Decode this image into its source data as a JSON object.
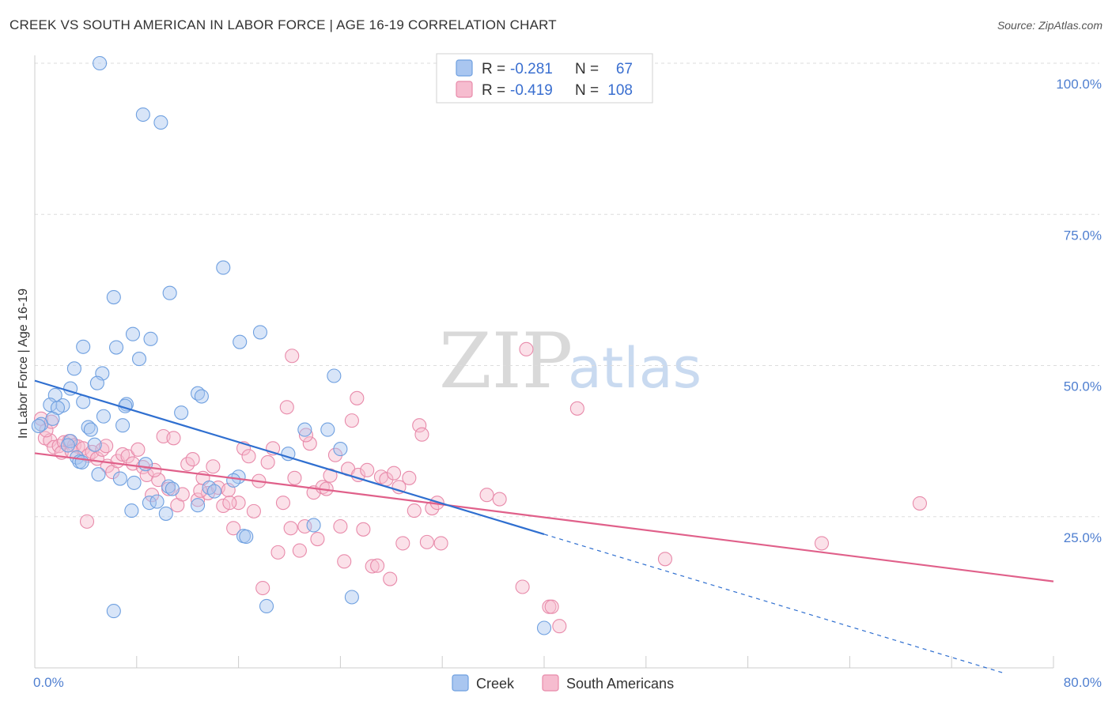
{
  "title": "CREEK VS SOUTH AMERICAN IN LABOR FORCE | AGE 16-19 CORRELATION CHART",
  "source": "Source: ZipAtlas.com",
  "watermark": {
    "zip": "ZIP",
    "atlas": "atlas"
  },
  "legend": {
    "creek": {
      "r_label": "R =",
      "r_value": "-0.281",
      "n_label": "N =",
      "n_value": "67"
    },
    "south": {
      "r_label": "R =",
      "r_value": "-0.419",
      "n_label": "N =",
      "n_value": "108"
    }
  },
  "bottom_legend": {
    "creek": "Creek",
    "south": "South Americans"
  },
  "colors": {
    "creek": "#6fa0e0",
    "creek_fill": "#a9c6f0",
    "creek_line": "#2f6fd0",
    "south": "#e88aaa",
    "south_fill": "#f6bccf",
    "south_line": "#e0608a"
  },
  "chart_data": {
    "type": "scatter",
    "title": "CREEK VS SOUTH AMERICAN IN LABOR FORCE | AGE 16-19 CORRELATION CHART",
    "xlabel": "",
    "ylabel": "In Labor Force | Age 16-19",
    "xlim": [
      0,
      80
    ],
    "ylim": [
      0,
      100
    ],
    "x_tick_labels": [
      "0.0%",
      "80.0%"
    ],
    "y_tick_labels": [
      "25.0%",
      "50.0%",
      "75.0%",
      "100.0%"
    ],
    "y_ticks": [
      25,
      50,
      75,
      100
    ],
    "series": [
      {
        "name": "Creek",
        "r": -0.281,
        "n": 67,
        "trend": {
          "x0": 0,
          "y0": 47.5,
          "x1": 40,
          "y1": 22.1,
          "dash_to_x": 76,
          "dash_to_y": -0.8
        },
        "points": [
          [
            5.1,
            100
          ],
          [
            8.5,
            91.5
          ],
          [
            9.9,
            90.2
          ],
          [
            14.8,
            66.2
          ],
          [
            10.6,
            62
          ],
          [
            6.2,
            61.3
          ],
          [
            17.7,
            55.5
          ],
          [
            7.7,
            55.2
          ],
          [
            9.1,
            54.4
          ],
          [
            16.1,
            53.9
          ],
          [
            3.8,
            53.1
          ],
          [
            6.4,
            53
          ],
          [
            8.2,
            51.1
          ],
          [
            3.1,
            49.5
          ],
          [
            5.3,
            48.7
          ],
          [
            23.5,
            48.3
          ],
          [
            4.9,
            47.1
          ],
          [
            2.8,
            46.2
          ],
          [
            12.8,
            45.4
          ],
          [
            1.6,
            45.1
          ],
          [
            13.1,
            44.9
          ],
          [
            3.8,
            44
          ],
          [
            7.2,
            43.6
          ],
          [
            1.2,
            43.5
          ],
          [
            2.2,
            43.4
          ],
          [
            7.1,
            43.3
          ],
          [
            1.8,
            43
          ],
          [
            11.5,
            42.2
          ],
          [
            1.4,
            41.2
          ],
          [
            5.4,
            41.6
          ],
          [
            0.5,
            40.3
          ],
          [
            0.3,
            40
          ],
          [
            6.9,
            40.1
          ],
          [
            4.2,
            39.8
          ],
          [
            4.4,
            39.4
          ],
          [
            21.2,
            39.4
          ],
          [
            23.0,
            39.4
          ],
          [
            2.8,
            37.5
          ],
          [
            4.7,
            36.9
          ],
          [
            2.6,
            36.8
          ],
          [
            24.0,
            36.2
          ],
          [
            19.9,
            35.4
          ],
          [
            3.3,
            34.8
          ],
          [
            3.5,
            34.1
          ],
          [
            3.7,
            34
          ],
          [
            8.7,
            33.7
          ],
          [
            5.0,
            32
          ],
          [
            6.7,
            31.3
          ],
          [
            7.8,
            30.6
          ],
          [
            16.0,
            31.6
          ],
          [
            15.6,
            31
          ],
          [
            10.5,
            30
          ],
          [
            13.7,
            29.8
          ],
          [
            10.8,
            29.6
          ],
          [
            14.1,
            29.2
          ],
          [
            9.0,
            27.3
          ],
          [
            9.6,
            27.5
          ],
          [
            7.6,
            26
          ],
          [
            10.3,
            25.5
          ],
          [
            12.8,
            26.9
          ],
          [
            21.9,
            23.6
          ],
          [
            16.4,
            21.8
          ],
          [
            6.2,
            9.4
          ],
          [
            18.2,
            10.2
          ],
          [
            24.9,
            11.7
          ],
          [
            40.0,
            6.6
          ],
          [
            16.6,
            21.7
          ]
        ]
      },
      {
        "name": "South Americans",
        "r": -0.419,
        "n": 108,
        "trend": {
          "x0": 0,
          "y0": 35.5,
          "x1": 80,
          "y1": 14.3
        },
        "points": [
          [
            0.5,
            41.2
          ],
          [
            0.8,
            38
          ],
          [
            1.2,
            37.6
          ],
          [
            1.5,
            36.5
          ],
          [
            1.9,
            36.7
          ],
          [
            2.3,
            37.3
          ],
          [
            2.7,
            37.5
          ],
          [
            3.1,
            36.8
          ],
          [
            3.4,
            36.6
          ],
          [
            3.8,
            36.3
          ],
          [
            4.2,
            35.1
          ],
          [
            4.5,
            35.7
          ],
          [
            4.9,
            34.6
          ],
          [
            5.3,
            36.1
          ],
          [
            5.7,
            33.4
          ],
          [
            6.1,
            32.4
          ],
          [
            6.5,
            34.2
          ],
          [
            6.9,
            35.3
          ],
          [
            7.3,
            35
          ],
          [
            7.7,
            33.8
          ],
          [
            8.1,
            36.1
          ],
          [
            8.5,
            33.2
          ],
          [
            8.8,
            31.9
          ],
          [
            9.2,
            28.6
          ],
          [
            9.7,
            31.1
          ],
          [
            10.1,
            38.3
          ],
          [
            10.5,
            29.6
          ],
          [
            10.9,
            38
          ],
          [
            11.2,
            26.9
          ],
          [
            11.6,
            28.7
          ],
          [
            12.0,
            33.7
          ],
          [
            12.4,
            34.5
          ],
          [
            12.8,
            27.8
          ],
          [
            13.2,
            31.4
          ],
          [
            13.6,
            28.9
          ],
          [
            14.0,
            33.3
          ],
          [
            14.4,
            29.8
          ],
          [
            14.8,
            26.8
          ],
          [
            15.2,
            29.4
          ],
          [
            15.6,
            23.1
          ],
          [
            16.0,
            27.3
          ],
          [
            16.4,
            36.3
          ],
          [
            16.8,
            35
          ],
          [
            17.2,
            25.9
          ],
          [
            17.6,
            30.9
          ],
          [
            17.9,
            13.2
          ],
          [
            18.3,
            34
          ],
          [
            18.7,
            36.3
          ],
          [
            19.1,
            19.1
          ],
          [
            19.5,
            27.3
          ],
          [
            19.8,
            43.1
          ],
          [
            20.1,
            23.1
          ],
          [
            20.4,
            31.4
          ],
          [
            20.8,
            19.4
          ],
          [
            21.2,
            23.4
          ],
          [
            21.6,
            37.1
          ],
          [
            21.9,
            29
          ],
          [
            22.2,
            21.3
          ],
          [
            22.6,
            29.9
          ],
          [
            22.9,
            29.6
          ],
          [
            23.2,
            31.8
          ],
          [
            23.6,
            35.2
          ],
          [
            24.0,
            23.4
          ],
          [
            24.3,
            17.6
          ],
          [
            24.6,
            32.9
          ],
          [
            24.9,
            40.9
          ],
          [
            25.4,
            31.9
          ],
          [
            25.8,
            22.9
          ],
          [
            26.1,
            32.7
          ],
          [
            26.5,
            16.8
          ],
          [
            26.9,
            16.9
          ],
          [
            27.2,
            31.6
          ],
          [
            27.6,
            31.2
          ],
          [
            27.9,
            14.7
          ],
          [
            28.2,
            32.2
          ],
          [
            28.6,
            29.9
          ],
          [
            28.9,
            20.6
          ],
          [
            29.4,
            31.4
          ],
          [
            29.8,
            26
          ],
          [
            30.2,
            40.1
          ],
          [
            30.4,
            38.6
          ],
          [
            30.8,
            20.8
          ],
          [
            31.2,
            26.4
          ],
          [
            31.6,
            27.3
          ],
          [
            31.9,
            20.6
          ],
          [
            20.2,
            51.6
          ],
          [
            38.6,
            52.7
          ],
          [
            21.3,
            38.5
          ],
          [
            25.3,
            44.6
          ],
          [
            35.5,
            28.6
          ],
          [
            36.5,
            27.9
          ],
          [
            38.3,
            13.4
          ],
          [
            40.4,
            10.1
          ],
          [
            40.6,
            10.1
          ],
          [
            41.2,
            6.9
          ],
          [
            42.6,
            42.9
          ],
          [
            49.5,
            18
          ],
          [
            61.8,
            20.6
          ],
          [
            69.5,
            27.2
          ],
          [
            0.9,
            39.3
          ],
          [
            1.3,
            40.7
          ],
          [
            2.1,
            35.6
          ],
          [
            2.9,
            35.8
          ],
          [
            4.1,
            24.2
          ],
          [
            5.6,
            36.7
          ],
          [
            9.4,
            32.7
          ],
          [
            13.0,
            29.3
          ],
          [
            15.3,
            27.3
          ]
        ]
      }
    ]
  }
}
